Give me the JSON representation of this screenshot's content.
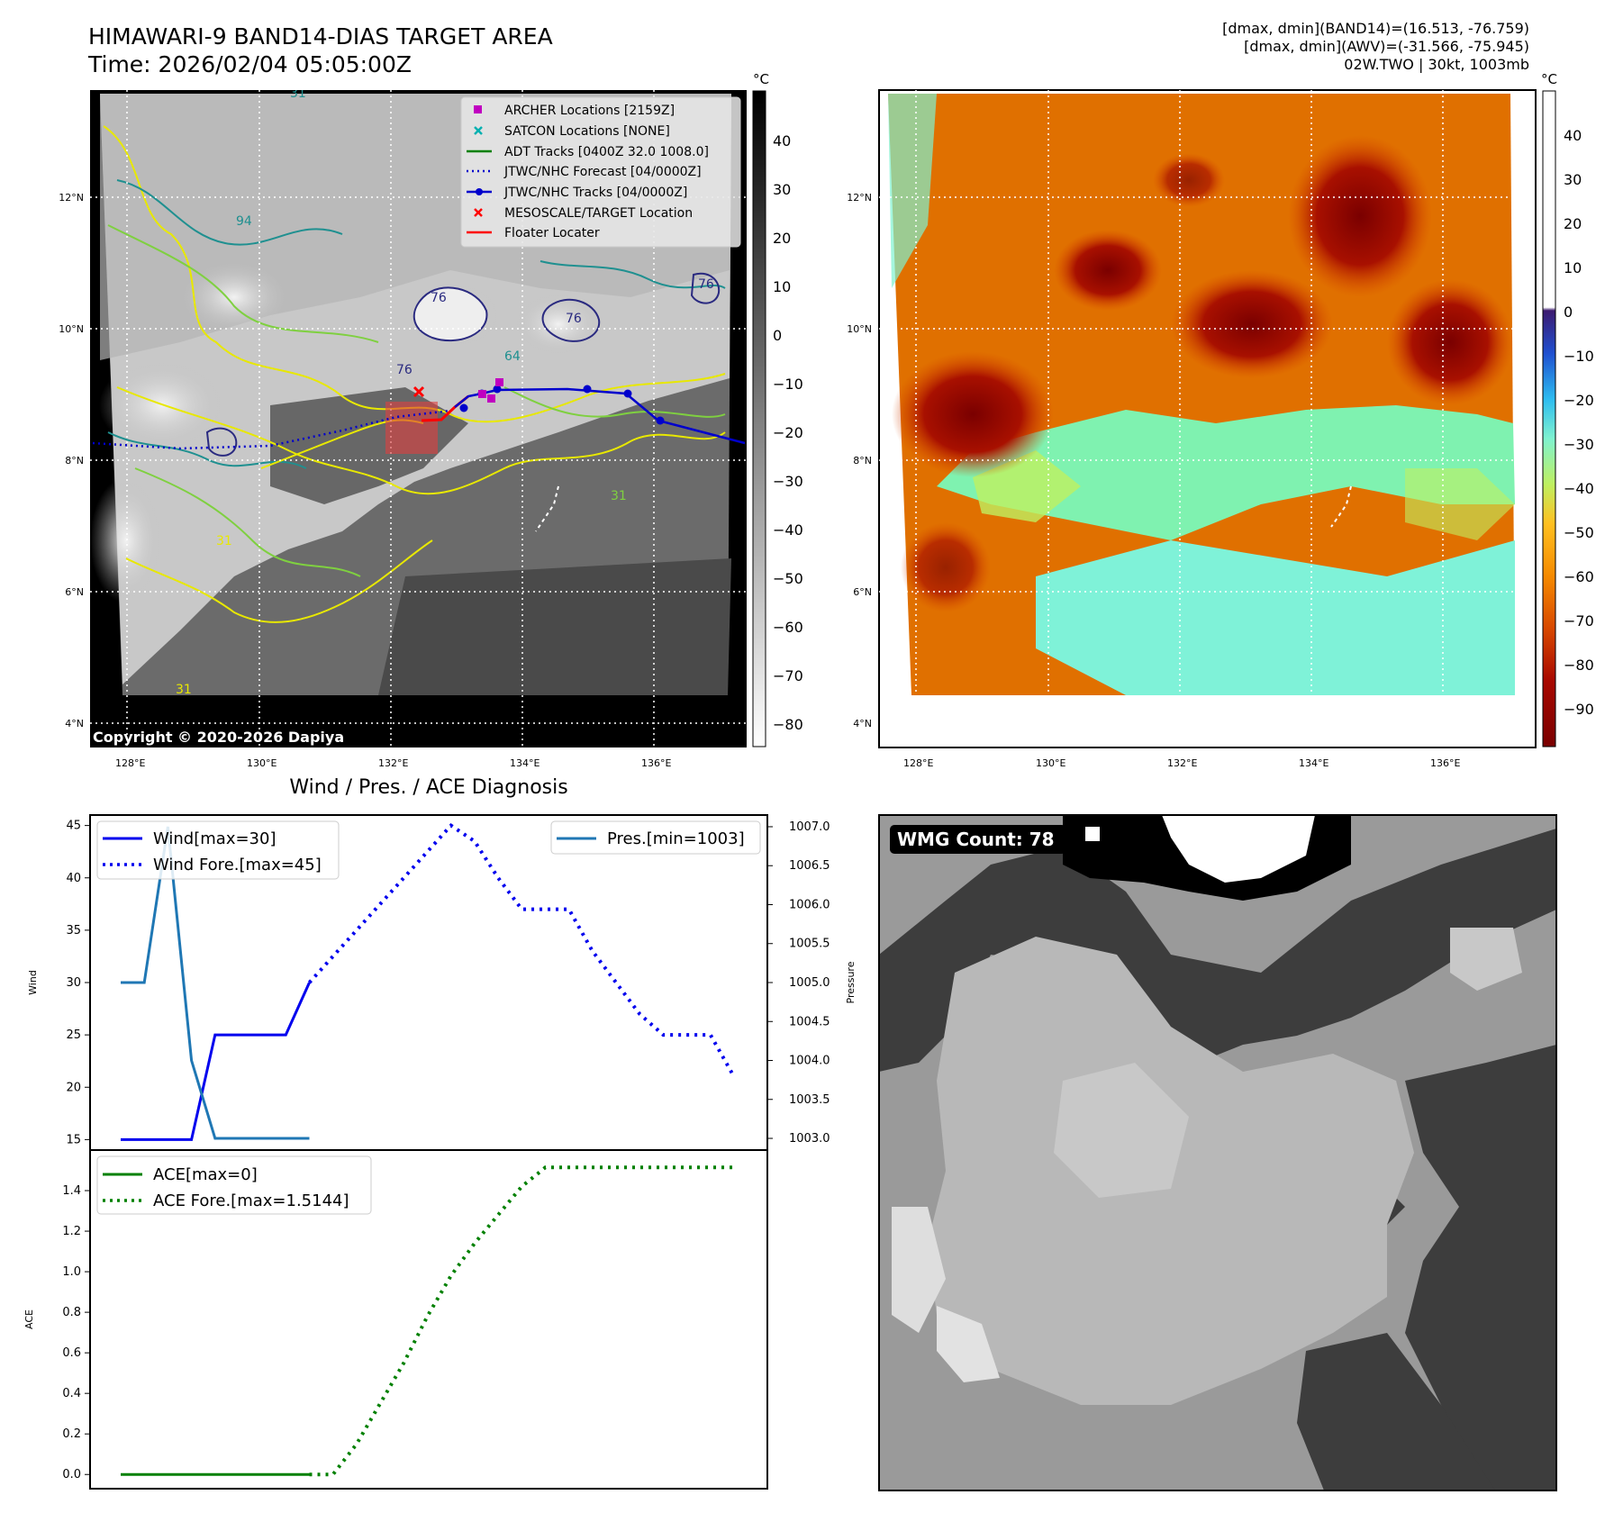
{
  "header": {
    "title": "HIMAWARI-9 BAND14-DIAS TARGET AREA",
    "time": "Time: 2026/02/04 05:05:00Z",
    "stats_line1": "[dmax, dmin](BAND14)=(16.513, -76.759)",
    "stats_line2": "[dmax, dmin](AWV)=(-31.566, -75.945)",
    "stats_line3": "02W.TWO | 30kt, 1003mb"
  },
  "map_panel": {
    "unit": "°C",
    "colorbar_ticks": [
      "40",
      "30",
      "20",
      "10",
      "0",
      "−10",
      "−20",
      "−30",
      "−40",
      "−50",
      "−60",
      "−70",
      "−80"
    ],
    "lon_labels": [
      "128°E",
      "130°E",
      "132°E",
      "134°E",
      "136°E"
    ],
    "lat_labels": [
      "12°N",
      "10°N",
      "8°N",
      "6°N",
      "4°N"
    ],
    "copyright": "Copyright © 2020-2026 Dapiya",
    "contour_labels": [
      "31",
      "31",
      "31",
      "31",
      "76",
      "76",
      "76",
      "64",
      "94",
      "76"
    ],
    "legend": [
      {
        "label": "ARCHER Locations [2159Z]",
        "color": "#c000c0",
        "marker": "square"
      },
      {
        "label": "SATCON Locations [NONE]",
        "color": "#00b0b0",
        "marker": "x"
      },
      {
        "label": "ADT Tracks [0400Z 32.0 1008.0]",
        "color": "#008000",
        "marker": "line"
      },
      {
        "label": "JTWC/NHC Forecast [04/0000Z]",
        "color": "#0000cc",
        "marker": "dotted"
      },
      {
        "label": "JTWC/NHC Tracks [04/0000Z]",
        "color": "#0000cc",
        "marker": "line-dot"
      },
      {
        "label": "MESOSCALE/TARGET Location",
        "color": "#ff0000",
        "marker": "x"
      },
      {
        "label": "Floater Locater",
        "color": "#ff0000",
        "marker": "line"
      }
    ]
  },
  "awv_panel": {
    "unit": "°C",
    "colorbar_ticks": [
      "40",
      "30",
      "20",
      "10",
      "0",
      "−10",
      "−20",
      "−30",
      "−40",
      "−50",
      "−60",
      "−70",
      "−80",
      "−90"
    ],
    "lon_labels": [
      "128°E",
      "130°E",
      "132°E",
      "134°E",
      "136°E"
    ],
    "lat_labels": [
      "12°N",
      "10°N",
      "8°N",
      "6°N",
      "4°N"
    ]
  },
  "diagnosis": {
    "title": "Wind / Pres. / ACE Diagnosis",
    "wind_ylabel": "Wind",
    "pres_ylabel": "Pressure",
    "ace_ylabel": "ACE",
    "legend_wind": "Wind[max=30]",
    "legend_wind_fore": "Wind Fore.[max=45]",
    "legend_pres": "Pres.[min=1003]",
    "legend_ace": "ACE[max=0]",
    "legend_ace_fore": "ACE Fore.[max=1.5144]"
  },
  "wmg": {
    "label": "WMG Count: 78"
  },
  "colors": {
    "wind": "#0000ee",
    "pressure": "#1f77b4",
    "ace": "#008000",
    "archer": "#c000c0",
    "track": "#0000cc",
    "target": "#ff0000"
  },
  "chart_data": [
    {
      "type": "line",
      "title": "Wind / Pres. / ACE Diagnosis",
      "ylabel": "Wind",
      "ylim": [
        14,
        46
      ],
      "yticks": [
        15,
        20,
        25,
        30,
        35,
        40,
        45
      ],
      "series": [
        {
          "name": "Wind[max=30]",
          "style": "solid",
          "x": [
            0,
            1,
            2,
            3,
            4,
            5,
            6,
            7,
            8
          ],
          "values": [
            15,
            15,
            15,
            15,
            25,
            25,
            25,
            25,
            30
          ]
        },
        {
          "name": "Wind Fore.[max=45]",
          "style": "dotted",
          "x": [
            8,
            9,
            10,
            11,
            12,
            13,
            14,
            15,
            16,
            17,
            18,
            19,
            20,
            21,
            22,
            23,
            24,
            25,
            26
          ],
          "values": [
            30,
            32.5,
            35,
            37.5,
            40,
            42.5,
            45,
            43.5,
            40,
            37,
            37,
            37,
            33,
            30,
            27,
            25,
            25,
            25,
            21
          ]
        }
      ]
    },
    {
      "type": "line",
      "ylabel": "Pressure",
      "ylim": [
        1002.85,
        1007.15
      ],
      "yticks": [
        1003.0,
        1003.5,
        1004.0,
        1004.5,
        1005.0,
        1005.5,
        1006.0,
        1006.5,
        1007.0
      ],
      "series": [
        {
          "name": "Pres.[min=1003]",
          "style": "solid",
          "x": [
            0,
            1,
            2,
            3,
            4,
            5,
            6,
            7,
            8
          ],
          "values": [
            1005,
            1005,
            1007,
            1004,
            1003,
            1003,
            1003,
            1003,
            1003
          ]
        }
      ]
    },
    {
      "type": "line",
      "ylabel": "ACE",
      "ylim": [
        -0.07,
        1.6
      ],
      "yticks": [
        0.0,
        0.2,
        0.4,
        0.6,
        0.8,
        1.0,
        1.2,
        1.4
      ],
      "series": [
        {
          "name": "ACE[max=0]",
          "style": "solid",
          "x": [
            0,
            1,
            2,
            3,
            4,
            5,
            6,
            7,
            8
          ],
          "values": [
            0,
            0,
            0,
            0,
            0,
            0,
            0,
            0,
            0
          ]
        },
        {
          "name": "ACE Fore.[max=1.5144]",
          "style": "dotted",
          "x": [
            8,
            9,
            10,
            11,
            12,
            13,
            14,
            15,
            16,
            17,
            18,
            19,
            20,
            21,
            22,
            23,
            24,
            25,
            26
          ],
          "values": [
            0,
            0,
            0.15,
            0.35,
            0.55,
            0.78,
            0.98,
            1.14,
            1.28,
            1.42,
            1.5144,
            1.5144,
            1.5144,
            1.5144,
            1.5144,
            1.5144,
            1.5144,
            1.5144,
            1.5144
          ]
        }
      ]
    }
  ]
}
